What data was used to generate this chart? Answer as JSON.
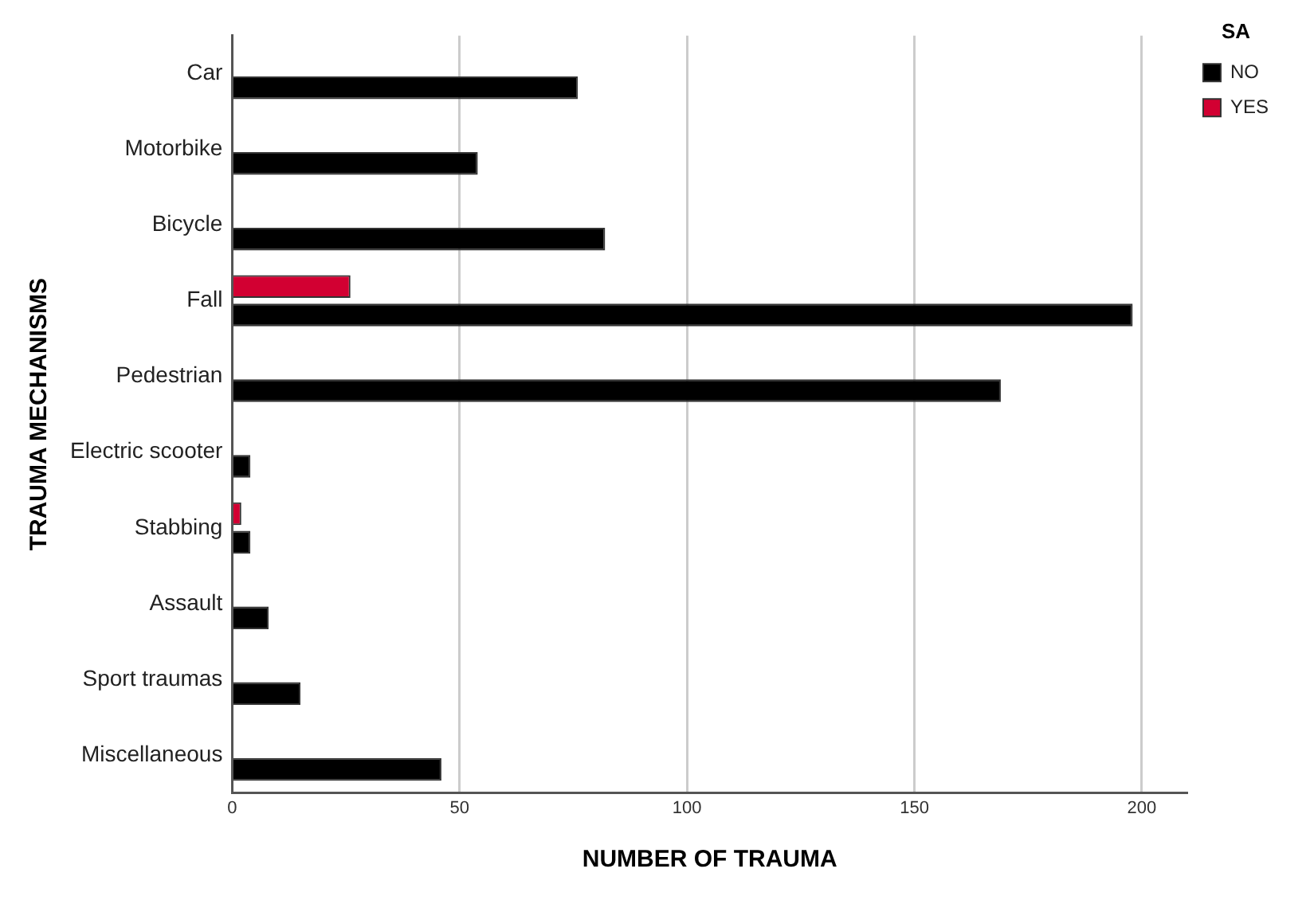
{
  "chart_data": {
    "type": "bar",
    "orientation": "horizontal",
    "xlabel": "NUMBER OF TRAUMA",
    "ylabel": "TRAUMA MECHANISMS",
    "legend_title": "SA",
    "legend": "top right",
    "grid": "x",
    "categories": [
      "Car",
      "Motorbike",
      "Bicycle",
      "Fall",
      "Pedestrian",
      "Electric scooter",
      "Stabbing",
      "Assault",
      "Sport traumas",
      "Miscellaneous"
    ],
    "series": [
      {
        "name": "NO",
        "color": "#000000",
        "values": [
          76,
          54,
          82,
          198,
          169,
          4,
          4,
          8,
          15,
          46
        ]
      },
      {
        "name": "YES",
        "color": "#d20032",
        "values": [
          null,
          null,
          null,
          26,
          null,
          null,
          2,
          null,
          null,
          null
        ]
      }
    ],
    "xlim": [
      0,
      210
    ],
    "xticks": [
      0,
      50,
      100,
      150,
      200
    ]
  }
}
